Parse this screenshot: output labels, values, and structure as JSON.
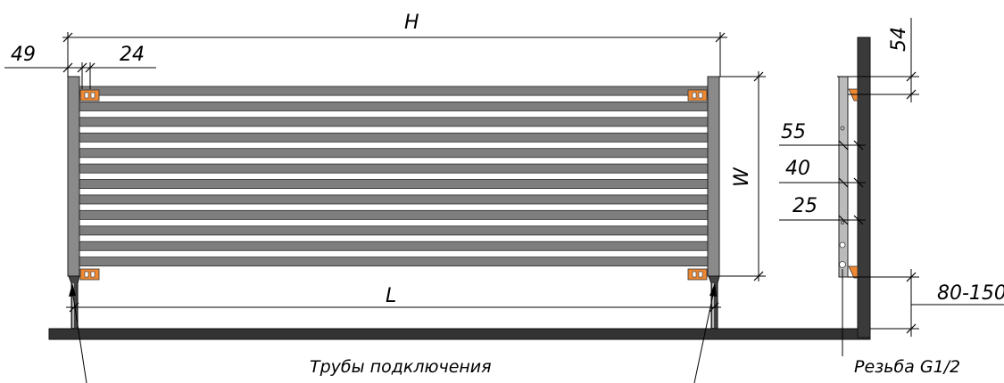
{
  "dimensions": {
    "H": "H",
    "W": "W",
    "L": "L",
    "d49": "49",
    "d24": "24",
    "d54": "54",
    "d55": "55",
    "d40": "40",
    "d25": "25",
    "d80_150": "80-150"
  },
  "labels": {
    "connection_pipes": "Трубы подключения",
    "thread": "Резьба G1/2"
  },
  "colors": {
    "bar_fill": "#7e7e7e",
    "bar_stroke": "#2a2a2a",
    "bracket": "#ee8833",
    "wall": "#3a3a3a",
    "floor": "#333333"
  },
  "radiator": {
    "bar_count": 12
  }
}
